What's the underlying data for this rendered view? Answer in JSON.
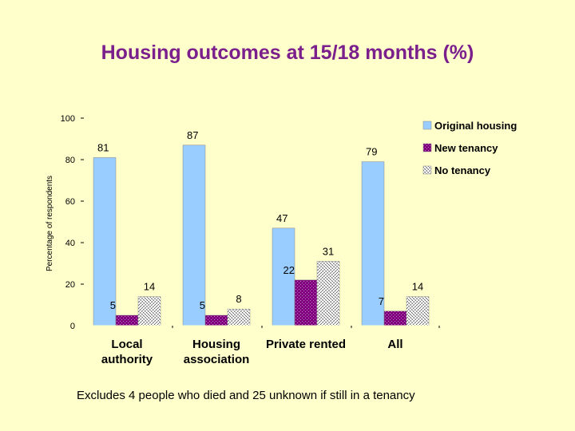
{
  "title": "Housing outcomes at 15/18 months (%)",
  "footnote": "Excludes 4 people who died and 25 unknown if still in a tenancy",
  "chart_data": {
    "type": "bar",
    "ylabel": "Percentage of respondents",
    "xlabel": "",
    "ylim": [
      0,
      100
    ],
    "yticks": [
      0,
      20,
      40,
      60,
      80,
      100
    ],
    "categories": [
      [
        "Local",
        "authority"
      ],
      [
        "Housing",
        "association"
      ],
      [
        "Private rented"
      ],
      [
        "All"
      ]
    ],
    "series": [
      {
        "name": "Original housing",
        "values": [
          81,
          87,
          47,
          79
        ],
        "color": "#99ccff",
        "pattern": "solid"
      },
      {
        "name": "New tenancy",
        "values": [
          5,
          5,
          22,
          7
        ],
        "color": "#800080",
        "pattern": "dots"
      },
      {
        "name": "No tenancy",
        "values": [
          14,
          8,
          31,
          14
        ],
        "color": "#ffffff",
        "pattern": "hatch"
      }
    ],
    "legend_position": "right"
  }
}
